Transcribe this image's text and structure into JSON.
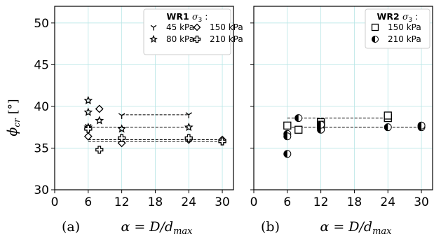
{
  "figure": {
    "ylabel": "ϕ",
    "ylabel_sub": "cr",
    "ylabel_unit": "[°]",
    "xlabel": "α = D/d",
    "xlabel_sub": "max"
  },
  "chart_data": [
    {
      "type": "scatter",
      "panel_label": "(a)",
      "legend_title": "WR1",
      "legend_title_suffix": "σ",
      "legend_title_sub": "3",
      "legend_title_colon": ":",
      "legend_position": "top-right",
      "xlim": [
        0,
        32
      ],
      "ylim": [
        30,
        52
      ],
      "xticks": [
        "0",
        "6",
        "12",
        "18",
        "24",
        "30"
      ],
      "xtick_values": [
        0,
        6,
        12,
        18,
        24,
        30
      ],
      "yticks": [
        "30",
        "35",
        "40",
        "45",
        "50"
      ],
      "ytick_values": [
        30,
        35,
        40,
        45,
        50
      ],
      "grid": true,
      "series": [
        {
          "name": "45 kPa",
          "marker": "tri",
          "x": [
            6,
            12,
            24
          ],
          "y": [
            37.6,
            38.9,
            39.0
          ],
          "line": {
            "x": [
              12,
              24
            ],
            "y": [
              39.0,
              39.0
            ]
          }
        },
        {
          "name": "80 kPa",
          "marker": "star",
          "x": [
            6,
            6,
            6,
            8,
            12,
            24
          ],
          "y": [
            40.7,
            39.3,
            37.5,
            38.3,
            37.3,
            37.5
          ],
          "line": {
            "x": [
              6,
              24
            ],
            "y": [
              37.5,
              37.5
            ]
          }
        },
        {
          "name": "150 kPa",
          "marker": "diamond",
          "x": [
            6,
            8,
            12,
            24,
            30
          ],
          "y": [
            36.4,
            39.7,
            35.6,
            36.0,
            36.0
          ],
          "line": {
            "x": [
              6,
              30
            ],
            "y": [
              36.0,
              36.0
            ]
          }
        },
        {
          "name": "210 kPa",
          "marker": "plus",
          "x": [
            6,
            8,
            12,
            24,
            30
          ],
          "y": [
            37.3,
            34.8,
            36.2,
            36.2,
            35.8
          ],
          "line": {
            "x": [
              6,
              30
            ],
            "y": [
              35.8,
              35.8
            ]
          }
        }
      ]
    },
    {
      "type": "scatter",
      "panel_label": "(b)",
      "legend_title": "WR2",
      "legend_title_suffix": "σ",
      "legend_title_sub": "3",
      "legend_title_colon": ":",
      "legend_position": "top-right",
      "xlim": [
        0,
        32
      ],
      "ylim": [
        30,
        52
      ],
      "xticks": [
        "0",
        "6",
        "12",
        "18",
        "24",
        "30"
      ],
      "xtick_values": [
        0,
        6,
        12,
        18,
        24,
        30
      ],
      "yticks": [],
      "ytick_values": [
        30,
        35,
        40,
        45,
        50
      ],
      "grid": true,
      "series": [
        {
          "name": "150 kPa",
          "marker": "square",
          "x": [
            6,
            8,
            12,
            12,
            24,
            24
          ],
          "y": [
            37.7,
            37.2,
            38.1,
            37.8,
            38.6,
            38.9
          ],
          "line": {
            "x": [
              6,
              24
            ],
            "y": [
              38.6,
              38.6
            ]
          }
        },
        {
          "name": "210 kPa",
          "marker": "halfcircle",
          "x": [
            6,
            6,
            6,
            8,
            12,
            12,
            12,
            24,
            30,
            30
          ],
          "y": [
            36.7,
            36.4,
            34.3,
            38.6,
            37.5,
            37.2,
            37.8,
            37.5,
            37.5,
            37.7
          ],
          "line": {
            "x": [
              6,
              30
            ],
            "y": [
              37.5,
              37.5
            ]
          }
        }
      ]
    }
  ]
}
